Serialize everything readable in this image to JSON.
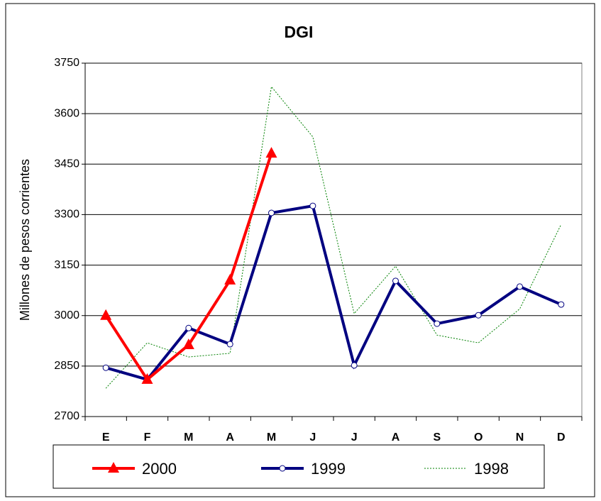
{
  "chart_data": {
    "type": "line",
    "title": "DGI",
    "y_label": "Millones de pesos corrientes",
    "categories": [
      "E",
      "F",
      "M",
      "A",
      "M",
      "J",
      "J",
      "A",
      "S",
      "O",
      "N",
      "D"
    ],
    "series": [
      {
        "name": "2000",
        "color": "#ff0000",
        "marker": "triangle",
        "dash": false,
        "values": [
          3000,
          2810,
          2913,
          3105,
          3482,
          null,
          null,
          null,
          null,
          null,
          null,
          null
        ]
      },
      {
        "name": "1999",
        "color": "#000080",
        "marker": "circle",
        "dash": false,
        "values": [
          2845,
          2810,
          2963,
          2915,
          3305,
          3326,
          2852,
          3103,
          2976,
          3001,
          3086,
          3033
        ]
      },
      {
        "name": "1998",
        "color": "#008000",
        "marker": "none",
        "dash": true,
        "values": [
          2784,
          2919,
          2877,
          2888,
          3680,
          3531,
          3006,
          3147,
          2942,
          2919,
          3020,
          3271
        ]
      }
    ],
    "ylim": [
      2700,
      3750
    ],
    "yticks": [
      2700,
      2850,
      3000,
      3150,
      3300,
      3450,
      3600,
      3750
    ],
    "grid": true,
    "legend": "bottom"
  }
}
